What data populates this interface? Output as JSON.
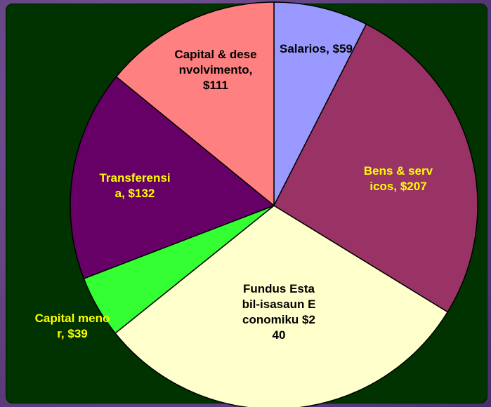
{
  "chart_data": {
    "type": "pie",
    "categories": [
      "Salarios,",
      "Bens & servicos,",
      "Fundus Estabil-isasaun Economiku",
      "Capital menor,",
      "Transferensia,",
      "Capital & desenvolvimento,"
    ],
    "values": [
      59,
      207,
      240,
      39,
      132,
      111
    ],
    "value_labels": [
      "$59",
      "$207",
      "$240",
      "$39",
      "$132",
      "$111"
    ],
    "colors": [
      "#9999ff",
      "#993366",
      "#ffffcc",
      "#33ff33",
      "#660066",
      "#ff8080"
    ],
    "label_colors": [
      "#000000",
      "#ffff00",
      "#000000",
      "#ffff00",
      "#ffff00",
      "#000000"
    ]
  }
}
